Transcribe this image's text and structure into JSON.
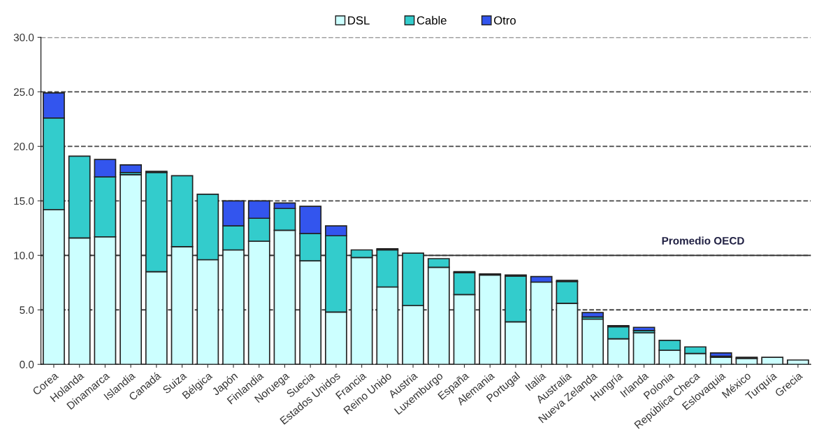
{
  "chart_data": {
    "type": "bar",
    "stacked": true,
    "legend": "top",
    "grid": "y",
    "line_style": "dashed",
    "categories": [
      "Corea",
      "Holanda",
      "Dinamarca",
      "Islandia",
      "Canadá",
      "Suiza",
      "Bélgica",
      "Japón",
      "Finlandia",
      "Noruega",
      "Suecia",
      "Estados Unidos",
      "Francia",
      "Reino Unido",
      "Austria",
      "Luxemburgo",
      "España",
      "Alemania",
      "Portugal",
      "Italia",
      "Australia",
      "Nueva Zelanda",
      "Hungría",
      "Irlanda",
      "Polonia",
      "República Checa",
      "Eslovaquia",
      "México",
      "Turquía",
      "Grecia"
    ],
    "series": [
      {
        "name": "DSL",
        "color": "#ccffff",
        "values": [
          14.2,
          11.6,
          11.7,
          17.4,
          8.5,
          10.8,
          9.6,
          10.5,
          11.3,
          12.3,
          9.5,
          4.8,
          9.8,
          7.1,
          5.4,
          8.9,
          6.4,
          8.2,
          3.9,
          7.55,
          5.6,
          4.15,
          2.35,
          2.9,
          1.3,
          1.0,
          0.65,
          0.55,
          0.65,
          0.4
        ]
      },
      {
        "name": "Cable",
        "color": "#33cccc",
        "values": [
          8.4,
          7.5,
          5.5,
          0.2,
          9.1,
          6.5,
          6.0,
          2.2,
          2.1,
          2.0,
          2.5,
          7.0,
          0.7,
          3.4,
          4.8,
          0.8,
          2.0,
          0.1,
          4.2,
          null,
          2.0,
          0.2,
          1.1,
          0.2,
          0.9,
          0.6,
          0.1,
          0.1,
          null,
          null
        ]
      },
      {
        "name": "Otro",
        "color": "#3355ee",
        "values": [
          2.3,
          null,
          1.6,
          0.7,
          0.1,
          null,
          null,
          2.3,
          1.6,
          0.5,
          2.5,
          0.9,
          null,
          0.1,
          null,
          null,
          0.1,
          null,
          0.1,
          0.5,
          0.1,
          0.4,
          0.1,
          0.3,
          null,
          null,
          0.3,
          null,
          null,
          null
        ]
      }
    ],
    "ylim": [
      0,
      30
    ],
    "yticks": [
      {
        "value": 0,
        "label": "0.0"
      },
      {
        "value": 5,
        "label": "5.0"
      },
      {
        "value": 10,
        "label": "10.0"
      },
      {
        "value": 15,
        "label": "15.0"
      },
      {
        "value": 20,
        "label": "20.0"
      },
      {
        "value": 25,
        "label": "25.0"
      },
      {
        "value": 30,
        "label": "30.0"
      }
    ],
    "ref_lines": [
      {
        "axis": "y",
        "value": 10,
        "label": "Promedio OECD",
        "color": "#333333",
        "line_style": "solid"
      }
    ]
  }
}
